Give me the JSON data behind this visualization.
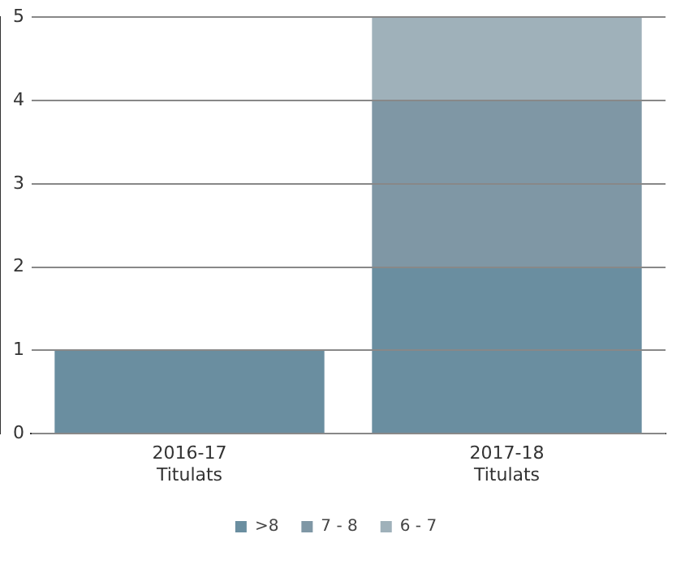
{
  "chart_data": {
    "type": "bar",
    "stacked": true,
    "categories": [
      "2016-17\nTitulats",
      "2017-18\nTitulats"
    ],
    "series": [
      {
        "name": ">8",
        "color": "#6a8ea0",
        "values": [
          1,
          2
        ]
      },
      {
        "name": "7 - 8",
        "color": "#7f97a5",
        "values": [
          0,
          2
        ]
      },
      {
        "name": "6 - 7",
        "color": "#9fb1ba",
        "values": [
          0,
          1
        ]
      }
    ],
    "ylim": [
      0,
      5
    ],
    "yticks": [
      0,
      1,
      2,
      3,
      4,
      5
    ],
    "grid": "y",
    "legend": "bottom"
  }
}
